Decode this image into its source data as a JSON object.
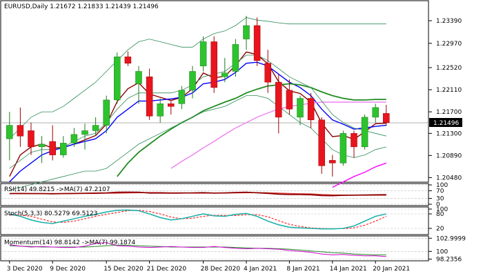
{
  "chart_data": {
    "type": "candlestick",
    "title": "EURUSD,Daily  1.21672 1.21833 1.21439 1.21496",
    "symbol": "EURUSD,Daily",
    "ohlc_header": "1.21672 1.21833 1.21439 1.21496",
    "current_price_label": "1.21496",
    "colors": {
      "bull": "#2dc32d",
      "bear": "#e8141e",
      "bull_wick": "#1f7a1f",
      "bear_wick": "#9a0000",
      "price_line": "#999999",
      "axis": "#000000"
    },
    "price_axis": {
      "min": 1.2025,
      "max": 1.2365,
      "ticks": [
        "1.23390",
        "1.22970",
        "1.22520",
        "1.22110",
        "1.21700",
        "1.21300",
        "1.20890",
        "1.20480"
      ]
    },
    "date_labels": [
      {
        "index": 0,
        "label": "3 Dec 2020"
      },
      {
        "index": 4,
        "label": "9 Dec 2020"
      },
      {
        "index": 9,
        "label": "15 Dec 2020"
      },
      {
        "index": 13,
        "label": "21 Dec 2020"
      },
      {
        "index": 18,
        "label": "28 Dec 2020"
      },
      {
        "index": 22,
        "label": "4 Jan 2021"
      },
      {
        "index": 26,
        "label": "8 Jan 2021"
      },
      {
        "index": 30,
        "label": "14 Jan 2021"
      },
      {
        "index": 34,
        "label": "20 Jan 2021"
      }
    ],
    "candles": [
      {
        "o": 1.212,
        "h": 1.217,
        "l": 1.208,
        "c": 1.2145
      },
      {
        "o": 1.2145,
        "h": 1.2178,
        "l": 1.2105,
        "c": 1.2125
      },
      {
        "o": 1.2135,
        "h": 1.215,
        "l": 1.209,
        "c": 1.2105
      },
      {
        "o": 1.2105,
        "h": 1.2125,
        "l": 1.2075,
        "c": 1.211
      },
      {
        "o": 1.2115,
        "h": 1.2145,
        "l": 1.208,
        "c": 1.209
      },
      {
        "o": 1.209,
        "h": 1.2125,
        "l": 1.2085,
        "c": 1.2112
      },
      {
        "o": 1.2112,
        "h": 1.214,
        "l": 1.2105,
        "c": 1.2128
      },
      {
        "o": 1.2128,
        "h": 1.2148,
        "l": 1.21,
        "c": 1.2135
      },
      {
        "o": 1.2135,
        "h": 1.216,
        "l": 1.2125,
        "c": 1.2145
      },
      {
        "o": 1.2145,
        "h": 1.22,
        "l": 1.213,
        "c": 1.2192
      },
      {
        "o": 1.2192,
        "h": 1.228,
        "l": 1.2185,
        "c": 1.2272
      },
      {
        "o": 1.2272,
        "h": 1.2282,
        "l": 1.2255,
        "c": 1.226
      },
      {
        "o": 1.2222,
        "h": 1.2255,
        "l": 1.2185,
        "c": 1.2245
      },
      {
        "o": 1.2235,
        "h": 1.225,
        "l": 1.2155,
        "c": 1.2162
      },
      {
        "o": 1.2162,
        "h": 1.2195,
        "l": 1.215,
        "c": 1.2185
      },
      {
        "o": 1.2185,
        "h": 1.219,
        "l": 1.2165,
        "c": 1.218
      },
      {
        "o": 1.2185,
        "h": 1.2218,
        "l": 1.2175,
        "c": 1.221
      },
      {
        "o": 1.221,
        "h": 1.2255,
        "l": 1.2195,
        "c": 1.2245
      },
      {
        "o": 1.2255,
        "h": 1.231,
        "l": 1.2245,
        "c": 1.23
      },
      {
        "o": 1.23,
        "h": 1.231,
        "l": 1.2205,
        "c": 1.2215
      },
      {
        "o": 1.2235,
        "h": 1.227,
        "l": 1.2225,
        "c": 1.2242
      },
      {
        "o": 1.2245,
        "h": 1.2305,
        "l": 1.2235,
        "c": 1.2295
      },
      {
        "o": 1.2305,
        "h": 1.2348,
        "l": 1.2285,
        "c": 1.233
      },
      {
        "o": 1.233,
        "h": 1.2345,
        "l": 1.2255,
        "c": 1.2265
      },
      {
        "o": 1.226,
        "h": 1.2285,
        "l": 1.2205,
        "c": 1.2225
      },
      {
        "o": 1.2225,
        "h": 1.224,
        "l": 1.213,
        "c": 1.216
      },
      {
        "o": 1.221,
        "h": 1.223,
        "l": 1.2165,
        "c": 1.2175
      },
      {
        "o": 1.216,
        "h": 1.22,
        "l": 1.2145,
        "c": 1.2195
      },
      {
        "o": 1.2195,
        "h": 1.2205,
        "l": 1.214,
        "c": 1.2155
      },
      {
        "o": 1.2155,
        "h": 1.216,
        "l": 1.2055,
        "c": 1.207
      },
      {
        "o": 1.208,
        "h": 1.209,
        "l": 1.205,
        "c": 1.2075
      },
      {
        "o": 1.2075,
        "h": 1.2135,
        "l": 1.207,
        "c": 1.213
      },
      {
        "o": 1.213,
        "h": 1.2135,
        "l": 1.2085,
        "c": 1.2105
      },
      {
        "o": 1.2105,
        "h": 1.2165,
        "l": 1.21,
        "c": 1.216
      },
      {
        "o": 1.216,
        "h": 1.2185,
        "l": 1.215,
        "c": 1.2178
      },
      {
        "o": 1.2167,
        "h": 1.2183,
        "l": 1.2144,
        "c": 1.215
      }
    ],
    "overlays": [
      {
        "color": "#8b0000",
        "values": [
          1.205,
          1.209,
          1.2105,
          1.211,
          1.2103,
          1.2104,
          1.211,
          1.2118,
          1.2126,
          1.2147,
          1.2189,
          1.2213,
          1.2224,
          1.2203,
          1.2197,
          1.2191,
          1.2197,
          1.2213,
          1.2242,
          1.2233,
          1.2236,
          1.2256,
          1.2281,
          1.2276,
          1.2259,
          1.2226,
          1.2209,
          1.2204,
          1.2188,
          1.2149,
          1.2124,
          1.2126,
          1.2119,
          1.2133,
          1.2148,
          1.2149
        ]
      },
      {
        "color": "#0000ff",
        "values": [
          1.204,
          1.206,
          1.2075,
          1.209,
          1.2098,
          1.2104,
          1.211,
          1.2115,
          1.212,
          1.2135,
          1.216,
          1.2175,
          1.219,
          1.219,
          1.2192,
          1.2194,
          1.2197,
          1.2205,
          1.2222,
          1.2225,
          1.223,
          1.2243,
          1.226,
          1.2262,
          1.2255,
          1.224,
          1.2225,
          1.2215,
          1.22,
          1.2175,
          1.2155,
          1.2147,
          1.2138,
          1.214,
          1.2143,
          1.2145
        ]
      },
      {
        "color": "#1e8c1e",
        "values": [
          null,
          null,
          null,
          null,
          null,
          null,
          null,
          null,
          null,
          null,
          1.205,
          1.2075,
          1.2095,
          1.211,
          1.2125,
          1.2138,
          1.215,
          1.216,
          1.2172,
          1.218,
          1.2188,
          1.2195,
          1.2205,
          1.2212,
          1.2218,
          1.222,
          1.2222,
          1.222,
          1.2215,
          1.2207,
          1.22,
          1.2195,
          1.2192,
          1.2192,
          1.2193,
          1.2193
        ]
      },
      {
        "color": "#ee82ee",
        "values": [
          null,
          null,
          null,
          null,
          null,
          null,
          null,
          null,
          null,
          null,
          null,
          null,
          null,
          null,
          null,
          1.2065,
          1.2078,
          1.209,
          1.2103,
          1.2115,
          1.2128,
          1.214,
          1.215,
          1.216,
          1.2168,
          1.2175,
          1.218,
          1.2183,
          1.2186,
          1.2188,
          1.2188,
          1.2188,
          1.2188,
          1.2188,
          1.2188,
          1.2188
        ]
      },
      {
        "color": "#ff00ff",
        "values": [
          null,
          null,
          null,
          null,
          null,
          null,
          null,
          null,
          null,
          null,
          null,
          null,
          null,
          null,
          null,
          null,
          null,
          null,
          null,
          null,
          null,
          null,
          null,
          null,
          null,
          null,
          null,
          null,
          null,
          null,
          1.203,
          1.204,
          1.205,
          1.2058,
          1.2068,
          1.2075
        ]
      },
      {
        "color": "#2e8b57",
        "values": [
          1.212,
          1.214,
          1.216,
          1.217,
          1.217,
          1.218,
          1.2195,
          1.221,
          1.2225,
          1.2245,
          1.2265,
          1.2285,
          1.23,
          1.2305,
          1.23,
          1.2295,
          1.229,
          1.229,
          1.2305,
          1.2315,
          1.232,
          1.233,
          1.2345,
          1.234,
          1.2338,
          1.2335,
          1.2333,
          1.2333,
          1.2333,
          1.2333,
          1.2333,
          1.2333,
          1.2333,
          1.2333,
          1.2333,
          1.2333
        ]
      },
      {
        "color": "#2e8b57",
        "values": [
          1.2025,
          1.203,
          1.2035,
          1.204,
          1.2045,
          1.205,
          1.2055,
          1.206,
          1.206,
          1.2065,
          1.208,
          1.2095,
          1.211,
          1.212,
          1.213,
          1.214,
          1.215,
          1.216,
          1.217,
          1.2175,
          1.218,
          1.219,
          1.22,
          1.22,
          1.2195,
          1.218,
          1.2165,
          1.215,
          1.214,
          1.212,
          1.21,
          1.209,
          1.2085,
          1.209,
          1.21,
          1.2105
        ]
      },
      {
        "color": "#2e8b57",
        "values": [
          1.2065,
          1.208,
          1.2095,
          1.21,
          1.21,
          1.2105,
          1.2115,
          1.2125,
          1.213,
          1.215,
          1.2175,
          1.2195,
          1.2205,
          1.2205,
          1.2205,
          1.2205,
          1.221,
          1.222,
          1.2235,
          1.224,
          1.2245,
          1.226,
          1.2275,
          1.2275,
          1.2265,
          1.225,
          1.2235,
          1.2225,
          1.2215,
          1.219,
          1.2165,
          1.215,
          1.214,
          1.2135,
          1.213,
          1.2125
        ]
      }
    ],
    "rsi": {
      "label": "RSI(14) 49.8215 ->MA(7) 47.2107",
      "ticks": [
        "100",
        "70",
        "30",
        "0"
      ],
      "range": [
        0,
        100
      ],
      "rsi_values": [
        55,
        56,
        55,
        55,
        54,
        55,
        56,
        57,
        58,
        59,
        62,
        63,
        62,
        58,
        58,
        57,
        58,
        59,
        60,
        58,
        59,
        61,
        62,
        59,
        56,
        52,
        50,
        50,
        49,
        45,
        44,
        46,
        47,
        48,
        49,
        50
      ],
      "ma_values": [
        55,
        55,
        55,
        55,
        55,
        55,
        55,
        56,
        56,
        57,
        58,
        59,
        60,
        60,
        60,
        59,
        59,
        58,
        58,
        58,
        58,
        59,
        60,
        60,
        59,
        57,
        55,
        54,
        53,
        50,
        48,
        47,
        47,
        47,
        47,
        47
      ],
      "rsi_color": "#8b0000",
      "ma_color": "#cc3333"
    },
    "stoch": {
      "label": "Stoch(5,3,3) 80.5279 69.5123",
      "ticks": [
        "100",
        "80",
        "20"
      ],
      "range": [
        0,
        100
      ],
      "k_values": [
        80,
        70,
        55,
        45,
        40,
        50,
        60,
        70,
        78,
        88,
        95,
        96,
        93,
        80,
        65,
        55,
        60,
        70,
        80,
        72,
        70,
        78,
        82,
        70,
        50,
        35,
        25,
        22,
        20,
        18,
        18,
        20,
        30,
        50,
        70,
        80
      ],
      "d_values": [
        75,
        75,
        70,
        58,
        47,
        45,
        50,
        60,
        70,
        78,
        86,
        93,
        95,
        90,
        80,
        67,
        60,
        62,
        70,
        74,
        74,
        73,
        77,
        77,
        68,
        52,
        37,
        28,
        22,
        20,
        19,
        19,
        22,
        33,
        50,
        70
      ],
      "k_color": "#20b2aa",
      "d_color": "#ff0000"
    },
    "momentum": {
      "label": "Momentum(14) 98.8142 ->MA(7) 99.1874",
      "ticks": [
        "102.9999",
        "100",
        "98.2356"
      ],
      "range": [
        98.0,
        103.2
      ],
      "mom_values": [
        101.5,
        101.2,
        101.0,
        101.1,
        101.0,
        100.9,
        100.9,
        101.2,
        101.8,
        102.0,
        101.3,
        101.2,
        101.0,
        100.9,
        101.0,
        101.1,
        101.0,
        100.9,
        100.9,
        101.1,
        100.9,
        100.7,
        100.6,
        100.7,
        100.6,
        100.5,
        100.2,
        100.0,
        99.8,
        99.4,
        99.2,
        99.3,
        99.1,
        99.0,
        99.0,
        98.8
      ],
      "ma_values": [
        101.3,
        101.2,
        101.1,
        101.0,
        101.0,
        101.0,
        101.0,
        101.0,
        101.1,
        101.3,
        101.4,
        101.4,
        101.3,
        101.2,
        101.1,
        101.0,
        101.0,
        101.0,
        101.0,
        101.0,
        101.0,
        100.9,
        100.8,
        100.7,
        100.7,
        100.6,
        100.5,
        100.3,
        100.1,
        99.9,
        99.7,
        99.6,
        99.4,
        99.3,
        99.2,
        99.2
      ],
      "mom_color": "#cc00cc",
      "ma_color": "#228b22"
    }
  }
}
